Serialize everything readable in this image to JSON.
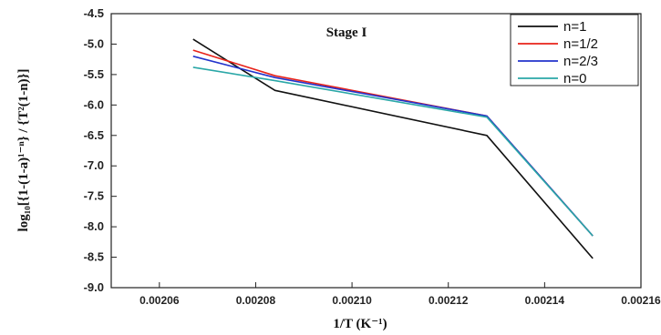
{
  "chart_data": {
    "type": "line",
    "title": "Stage I",
    "xlabel": "1/T (K⁻¹)",
    "ylabel": "log₁₀[{1-(1-a)¹⁻ⁿ} / {T²(1-n)}]",
    "xlim": [
      0.00205,
      0.00216
    ],
    "ylim": [
      -9.0,
      -4.5
    ],
    "xticks": [
      "0.00206",
      "0.00208",
      "0.00210",
      "0.00212",
      "0.00214",
      "0.00216"
    ],
    "yticks": [
      "-4.5",
      "-5.0",
      "-5.5",
      "-6.0",
      "-6.5",
      "-7.0",
      "-7.5",
      "-8.0",
      "-8.5",
      "-9.0"
    ],
    "legend_position": "top-right",
    "series": [
      {
        "name": "n=1",
        "color": "#111111",
        "x": [
          0.002067,
          0.002084,
          0.002128,
          0.00215
        ],
        "y": [
          -4.92,
          -5.76,
          -6.5,
          -8.52
        ]
      },
      {
        "name": "n=1/2",
        "color": "#e8231a",
        "x": [
          0.002067,
          0.002084,
          0.002128,
          0.00215
        ],
        "y": [
          -5.1,
          -5.52,
          -6.18,
          -8.15
        ]
      },
      {
        "name": "n=2/3",
        "color": "#2233cc",
        "x": [
          0.002067,
          0.002084,
          0.002128,
          0.00215
        ],
        "y": [
          -5.2,
          -5.55,
          -6.18,
          -8.15
        ]
      },
      {
        "name": "n=0",
        "color": "#2aa7a7",
        "x": [
          0.002067,
          0.002084,
          0.002128,
          0.00215
        ],
        "y": [
          -5.38,
          -5.6,
          -6.2,
          -8.15
        ]
      }
    ]
  }
}
